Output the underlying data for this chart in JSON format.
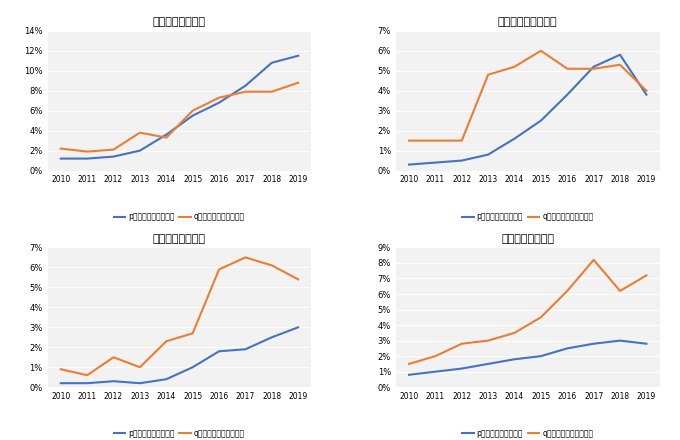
{
  "years": [
    2010,
    2011,
    2012,
    2013,
    2014,
    2015,
    2016,
    2017,
    2018,
    2019
  ],
  "taipei": {
    "title": "渡航確率（台北）",
    "p": [
      0.012,
      0.012,
      0.014,
      0.02,
      0.036,
      0.055,
      0.068,
      0.085,
      0.108,
      0.115
    ],
    "q": [
      0.022,
      0.019,
      0.021,
      0.038,
      0.033,
      0.06,
      0.073,
      0.079,
      0.079,
      0.088
    ],
    "ylim": [
      0,
      0.14
    ],
    "yticks": [
      0,
      0.02,
      0.04,
      0.06,
      0.08,
      0.1,
      0.12,
      0.14
    ]
  },
  "seoul": {
    "title": "渡航確率（ソウル）",
    "p": [
      0.003,
      0.004,
      0.005,
      0.008,
      0.016,
      0.025,
      0.038,
      0.052,
      0.058,
      0.038
    ],
    "q": [
      0.015,
      0.015,
      0.015,
      0.048,
      0.052,
      0.06,
      0.051,
      0.051,
      0.053,
      0.04
    ],
    "ylim": [
      0,
      0.07
    ],
    "yticks": [
      0,
      0.01,
      0.02,
      0.03,
      0.04,
      0.05,
      0.06,
      0.07
    ]
  },
  "shanghai": {
    "title": "渡航確率（上海）",
    "p": [
      0.002,
      0.002,
      0.003,
      0.002,
      0.004,
      0.01,
      0.018,
      0.019,
      0.025,
      0.03
    ],
    "q": [
      0.009,
      0.006,
      0.015,
      0.01,
      0.023,
      0.027,
      0.059,
      0.065,
      0.061,
      0.054
    ],
    "ylim": [
      0,
      0.07
    ],
    "yticks": [
      0,
      0.01,
      0.02,
      0.03,
      0.04,
      0.05,
      0.06,
      0.07
    ]
  },
  "hongkong": {
    "title": "渡航確率（香港）",
    "p": [
      0.008,
      0.01,
      0.012,
      0.015,
      0.018,
      0.02,
      0.025,
      0.028,
      0.03,
      0.028
    ],
    "q": [
      0.015,
      0.02,
      0.028,
      0.03,
      0.035,
      0.045,
      0.062,
      0.082,
      0.062,
      0.072
    ],
    "ylim": [
      0,
      0.09
    ],
    "yticks": [
      0,
      0.01,
      0.02,
      0.03,
      0.04,
      0.05,
      0.06,
      0.07,
      0.08,
      0.09
    ]
  },
  "color_p": "#4472C4",
  "color_q": "#ED7D31",
  "legend_p": "p：初めての渡航確率",
  "legend_q": "q：リピーター渡航確率",
  "background_color": "#F2F2F2",
  "linewidth": 1.5
}
